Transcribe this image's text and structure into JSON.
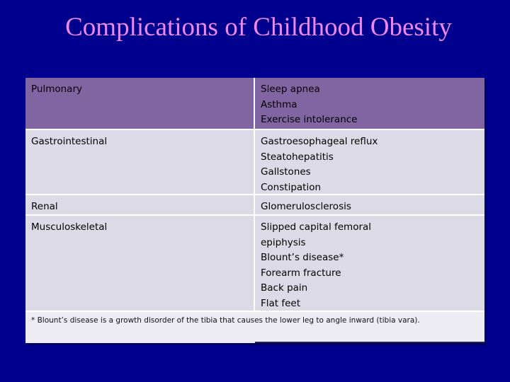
{
  "title": "Complications of Childhood Obesity",
  "table": {
    "rows": [
      {
        "system": "Pulmonary",
        "complications": [
          "Sleep apnea",
          "Asthma",
          "Exercise intolerance"
        ]
      },
      {
        "system": "Gastrointestinal",
        "complications": [
          "Gastroesophageal reflux",
          "Steatohepatitis",
          "Gallstones",
          "Constipation"
        ]
      },
      {
        "system": "Renal",
        "complications": [
          "Glomerulosclerosis"
        ]
      },
      {
        "system": "Musculoskeletal",
        "complications": [
          "Slipped capital femoral",
          "epiphysis",
          "Blount’s disease*",
          "Forearm fracture",
          "Back pain",
          "Flat feet"
        ]
      }
    ],
    "footnote": "* Blount’s disease is a growth disorder of the tibia that causes the lower leg to angle inward (tibia vara)."
  },
  "colors": {
    "background": "#00008e",
    "title": "#ee88ee",
    "header_row": "#8065a2",
    "body_row": "#dcdae6"
  }
}
